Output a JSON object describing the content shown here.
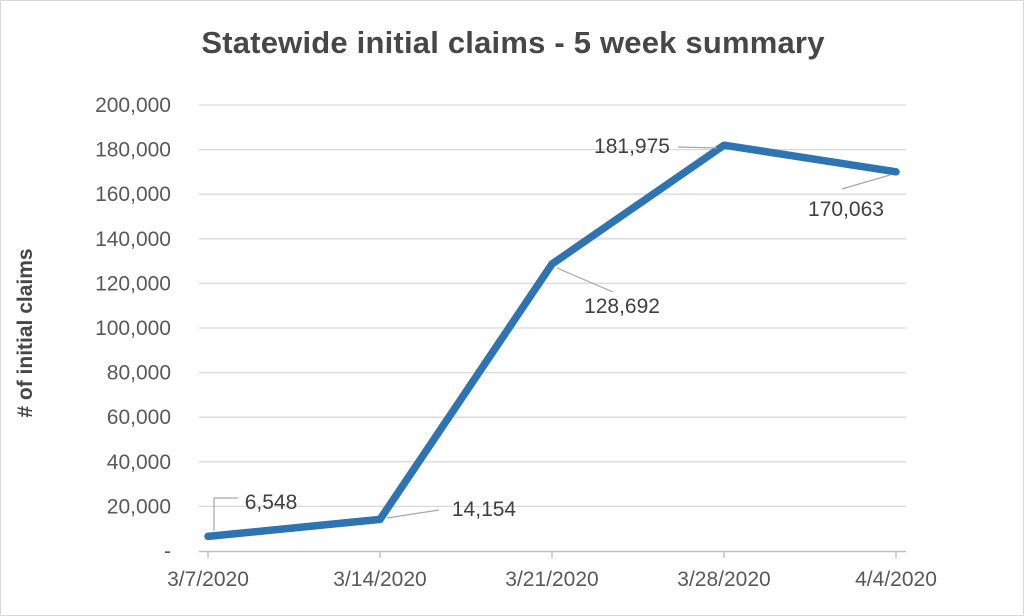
{
  "figure": {
    "background": "#ffffff",
    "border_color": "#d8d8d8"
  },
  "chart_data": {
    "type": "line",
    "title": "Statewide initial claims - 5 week summary",
    "xlabel": "",
    "ylabel": "# of initial claims",
    "categories": [
      "3/7/2020",
      "3/14/2020",
      "3/21/2020",
      "3/28/2020",
      "4/4/2020"
    ],
    "values": [
      6548,
      14154,
      128692,
      181975,
      170063
    ],
    "point_labels": [
      "6,548",
      "14,154",
      "128,692",
      "181,975",
      "170,063"
    ],
    "ylim": [
      0,
      200000
    ],
    "ytick_step": 20000,
    "ytick_labels": [
      "-",
      "20,000",
      "40,000",
      "60,000",
      "80,000",
      "100,000",
      "120,000",
      "140,000",
      "160,000",
      "180,000",
      "200,000"
    ],
    "grid": true,
    "legend_position": "none",
    "colors": {
      "line": "#2e73b2",
      "grid": "#d9d9d9",
      "axis": "#bfbfbf",
      "tick_text": "#595959",
      "label_text": "#404040",
      "title_text": "#474747",
      "leader": "#a6a6a6"
    }
  }
}
